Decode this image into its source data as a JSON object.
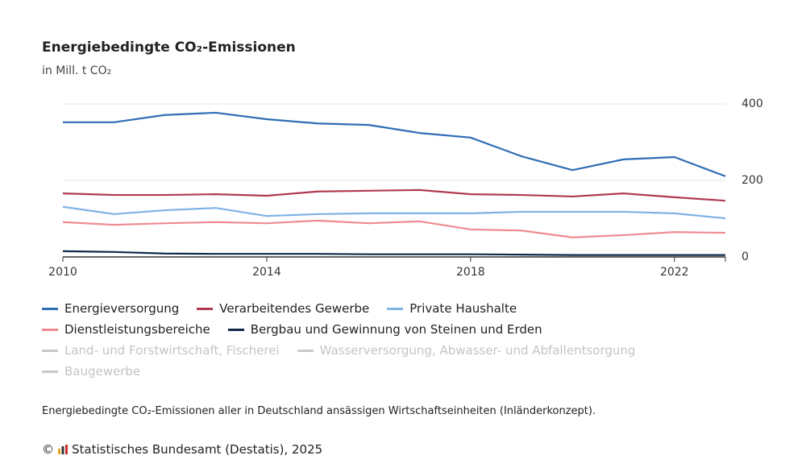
{
  "chart_data": {
    "type": "line",
    "title": "Energiebedingte CO₂-Emissionen",
    "subtitle": "in Mill. t CO₂",
    "x": [
      2010,
      2011,
      2012,
      2013,
      2014,
      2015,
      2016,
      2017,
      2018,
      2019,
      2020,
      2021,
      2022,
      2023
    ],
    "xlim": [
      2010,
      2023
    ],
    "xticks": [
      2010,
      2014,
      2018,
      2022
    ],
    "ylim": [
      0,
      400
    ],
    "yticks": [
      0,
      200,
      400
    ],
    "grid": true,
    "series": [
      {
        "name": "Energieversorgung",
        "color": "#2f6db5",
        "values": [
          352,
          352,
          371,
          377,
          360,
          349,
          345,
          324,
          312,
          263,
          227,
          255,
          261,
          211
        ]
      },
      {
        "name": "Verarbeitendes Gewerbe",
        "color": "#b03a52",
        "values": [
          166,
          162,
          162,
          164,
          160,
          171,
          173,
          175,
          164,
          162,
          158,
          166,
          156,
          147
        ]
      },
      {
        "name": "Private Haushalte",
        "color": "#7fb2e5",
        "values": [
          131,
          112,
          122,
          128,
          107,
          112,
          114,
          114,
          114,
          118,
          118,
          118,
          114,
          101
        ]
      },
      {
        "name": "Dienstleistungsbereiche",
        "color": "#ee8b92",
        "values": [
          91,
          84,
          88,
          91,
          88,
          95,
          88,
          93,
          72,
          69,
          51,
          57,
          65,
          63
        ]
      },
      {
        "name": "Bergbau und Gewinnung von Steinen und Erden",
        "color": "#0f2a4a",
        "values": [
          15,
          13,
          9,
          8,
          8,
          8,
          7,
          7,
          7,
          6,
          5,
          5,
          5,
          5
        ]
      }
    ],
    "hidden_series": [
      {
        "name": "Land- und Forstwirtschaft, Fischerei",
        "color": "#c8c8c8"
      },
      {
        "name": "Wasserversorgung, Abwasser- und Abfallentsorgung",
        "color": "#c8c8c8"
      },
      {
        "name": "Baugewerbe",
        "color": "#c8c8c8"
      }
    ],
    "footnote": "Energiebedingte CO₂-Emissionen aller in Deutschland ansässigen Wirtschaftseinheiten (Inländerkonzept).",
    "source_symbol": "©",
    "source": "Statistisches Bundesamt (Destatis), 2025"
  }
}
